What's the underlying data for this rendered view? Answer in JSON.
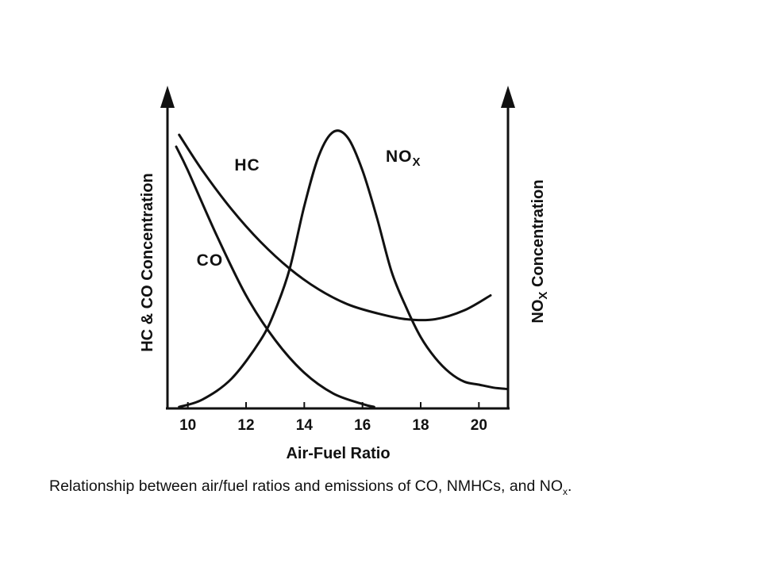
{
  "caption": {
    "main": "Relationship between air/fuel ratios and emissions of CO, NMHCs, and NO",
    "sub": "x",
    "end": "."
  },
  "chart_data": {
    "type": "line",
    "title": "",
    "xlabel": "Air-Fuel Ratio",
    "ylabel_left": "HC & CO Concentration",
    "ylabel_right": {
      "main": "NO",
      "sub": "X",
      "end": " Concentration"
    },
    "xlim": [
      9.3,
      21.0
    ],
    "ylim": [
      0,
      100
    ],
    "x_ticks": [
      10,
      12,
      14,
      16,
      18,
      20
    ],
    "y_ticks": [],
    "grid": false,
    "legend": "none",
    "series": [
      {
        "name": "HC",
        "label": {
          "main": "HC",
          "sub": ""
        },
        "label_at": [
          11.6,
          80
        ],
        "x": [
          9.7,
          10.5,
          11.5,
          12.5,
          13.5,
          14.5,
          15.5,
          16.5,
          17.5,
          18.5,
          19.5,
          20.4
        ],
        "y": [
          92,
          80,
          67,
          56,
          47,
          40,
          35,
          32,
          30,
          30,
          33,
          38
        ]
      },
      {
        "name": "CO",
        "label": {
          "main": "CO",
          "sub": ""
        },
        "label_at": [
          10.3,
          48
        ],
        "x": [
          9.6,
          10.0,
          11.0,
          12.0,
          13.0,
          14.0,
          15.0,
          16.0,
          16.4
        ],
        "y": [
          88,
          80,
          58,
          38,
          23,
          12,
          5,
          1.5,
          0.5
        ]
      },
      {
        "name": "NOx",
        "label": {
          "main": "NO",
          "sub": "X"
        },
        "label_at": [
          16.8,
          83
        ],
        "x": [
          9.7,
          10.5,
          11.5,
          12.5,
          13.0,
          13.5,
          14.0,
          14.5,
          15.0,
          15.5,
          16.0,
          16.5,
          17.0,
          17.5,
          18.0,
          18.5,
          19.0,
          19.5,
          20.0,
          20.5,
          21.0
        ],
        "y": [
          0.5,
          3,
          10,
          23,
          33,
          47,
          68,
          85,
          93,
          91,
          80,
          64,
          46,
          34,
          24,
          17,
          12,
          9,
          8,
          7,
          6.5
        ]
      }
    ]
  }
}
